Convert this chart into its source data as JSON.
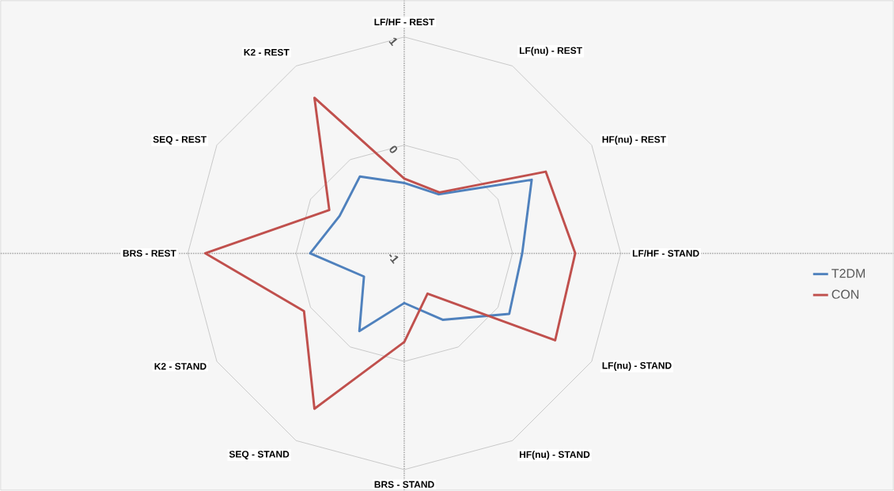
{
  "chart_data": {
    "type": "radar",
    "categories": [
      "LF/HF - REST",
      "LF(nu) - REST",
      "HF(nu) - REST",
      "LF/HF - STAND",
      "LF(nu) - STAND",
      "HF(nu) - STAND",
      "BRS - STAND",
      "SEQ - STAND",
      "K2 - STAND",
      "BRS - REST",
      "SEQ - REST",
      "K2 - REST"
    ],
    "series": [
      {
        "name": "T2DM",
        "color": "#4f81bd",
        "values": [
          -0.35,
          -0.37,
          0.36,
          0.09,
          0.12,
          -0.29,
          -0.54,
          -0.17,
          -0.57,
          -0.13,
          -0.31,
          -0.18
        ]
      },
      {
        "name": "CON",
        "color": "#c0504d",
        "values": [
          -0.31,
          -0.35,
          0.51,
          0.58,
          0.61,
          -0.57,
          -0.18,
          0.66,
          0.07,
          0.84,
          -0.2,
          0.66
        ]
      }
    ],
    "ylim": [
      -1,
      1
    ],
    "yticks": [
      -1,
      0,
      1
    ],
    "grid": true,
    "legend": "right"
  }
}
